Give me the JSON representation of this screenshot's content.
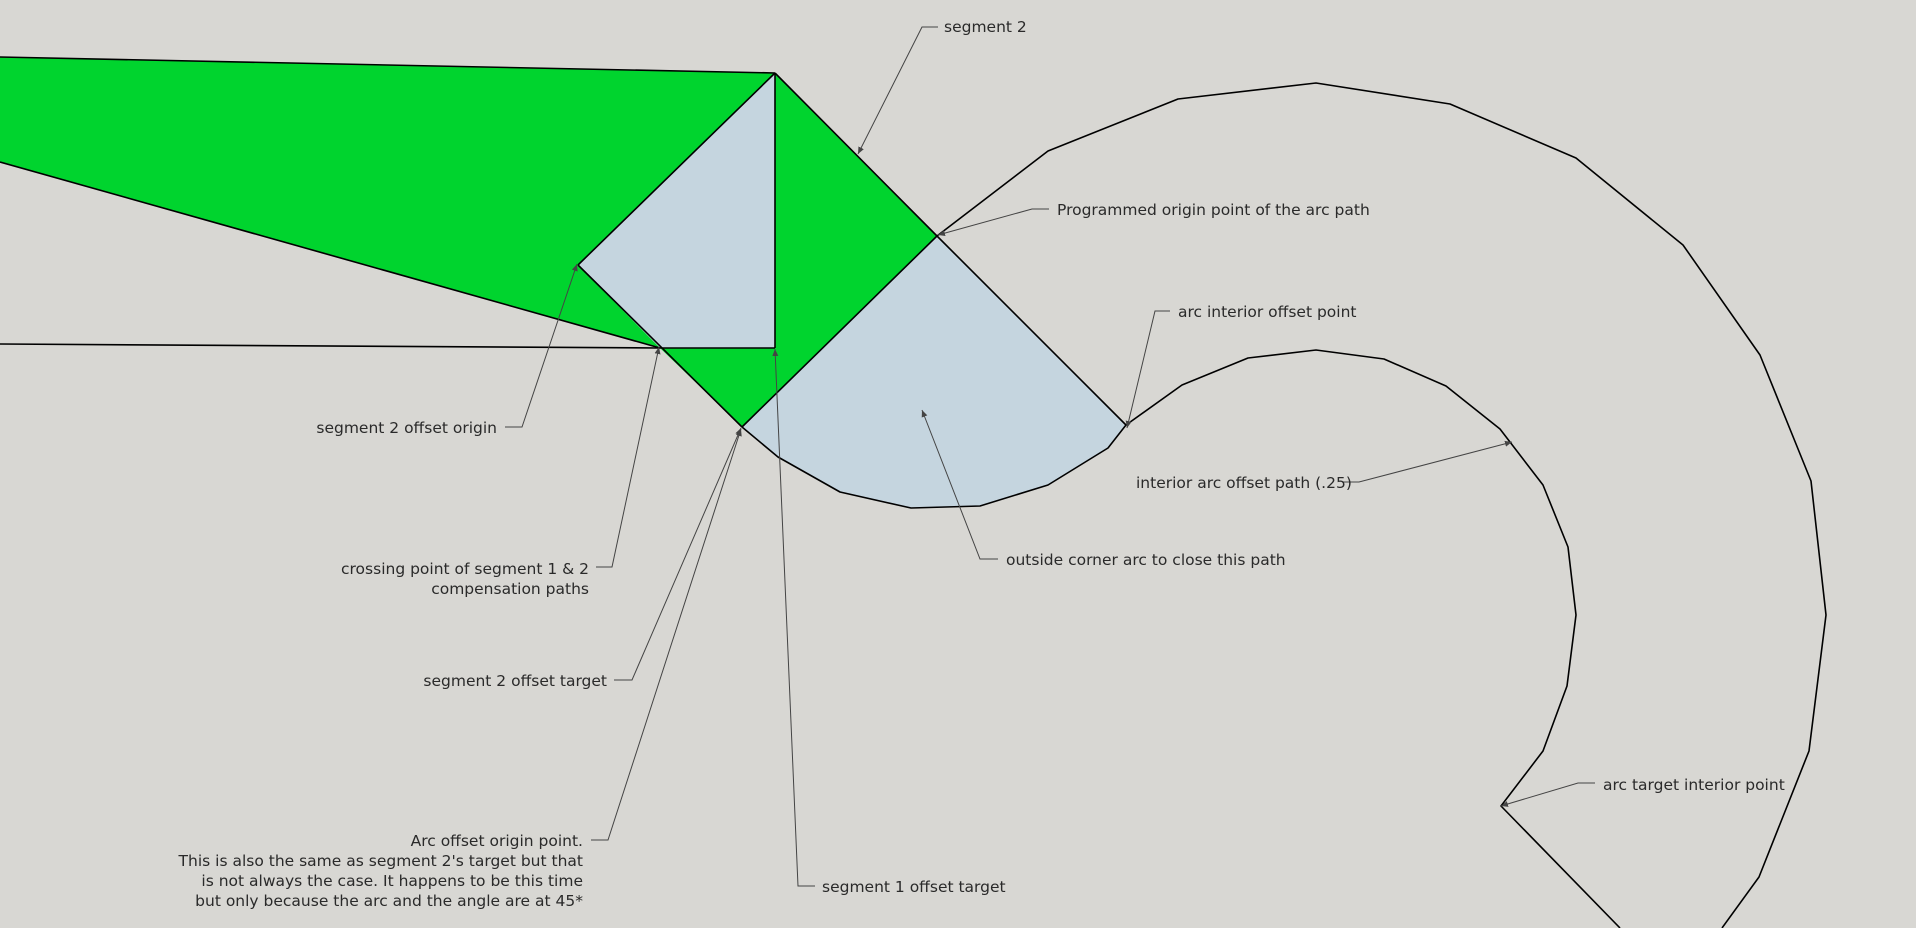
{
  "colors": {
    "background": "#d8d7d3",
    "compensation_fill": "#00d42e",
    "offset_fill": "#c5d5df",
    "edge": "#000000",
    "leader": "#444444"
  },
  "labels": {
    "segment_2": "segment 2",
    "programmed_origin": "Programmed origin point of the arc path",
    "arc_interior_offset_point": "arc interior offset point",
    "segment_2_offset_origin": "segment 2 offset origin",
    "interior_arc_offset_path": "interior arc offset path (.25)",
    "outside_corner_arc": "outside corner arc to close this path",
    "crossing_point_line1": "crossing point of segment 1 & 2",
    "crossing_point_line2": "compensation paths",
    "segment_2_offset_target": "segment 2 offset target",
    "arc_target_interior_point": "arc target interior point",
    "arc_offset_origin_line1": "Arc offset origin point.",
    "arc_offset_origin_line2": "This is also the same as segment 2's target but that",
    "arc_offset_origin_line3": "is not always the case. It happens to be this time",
    "arc_offset_origin_line4": "but only because the arc and the angle are at 45*",
    "segment_1_offset_target": "segment 1 offset target"
  }
}
